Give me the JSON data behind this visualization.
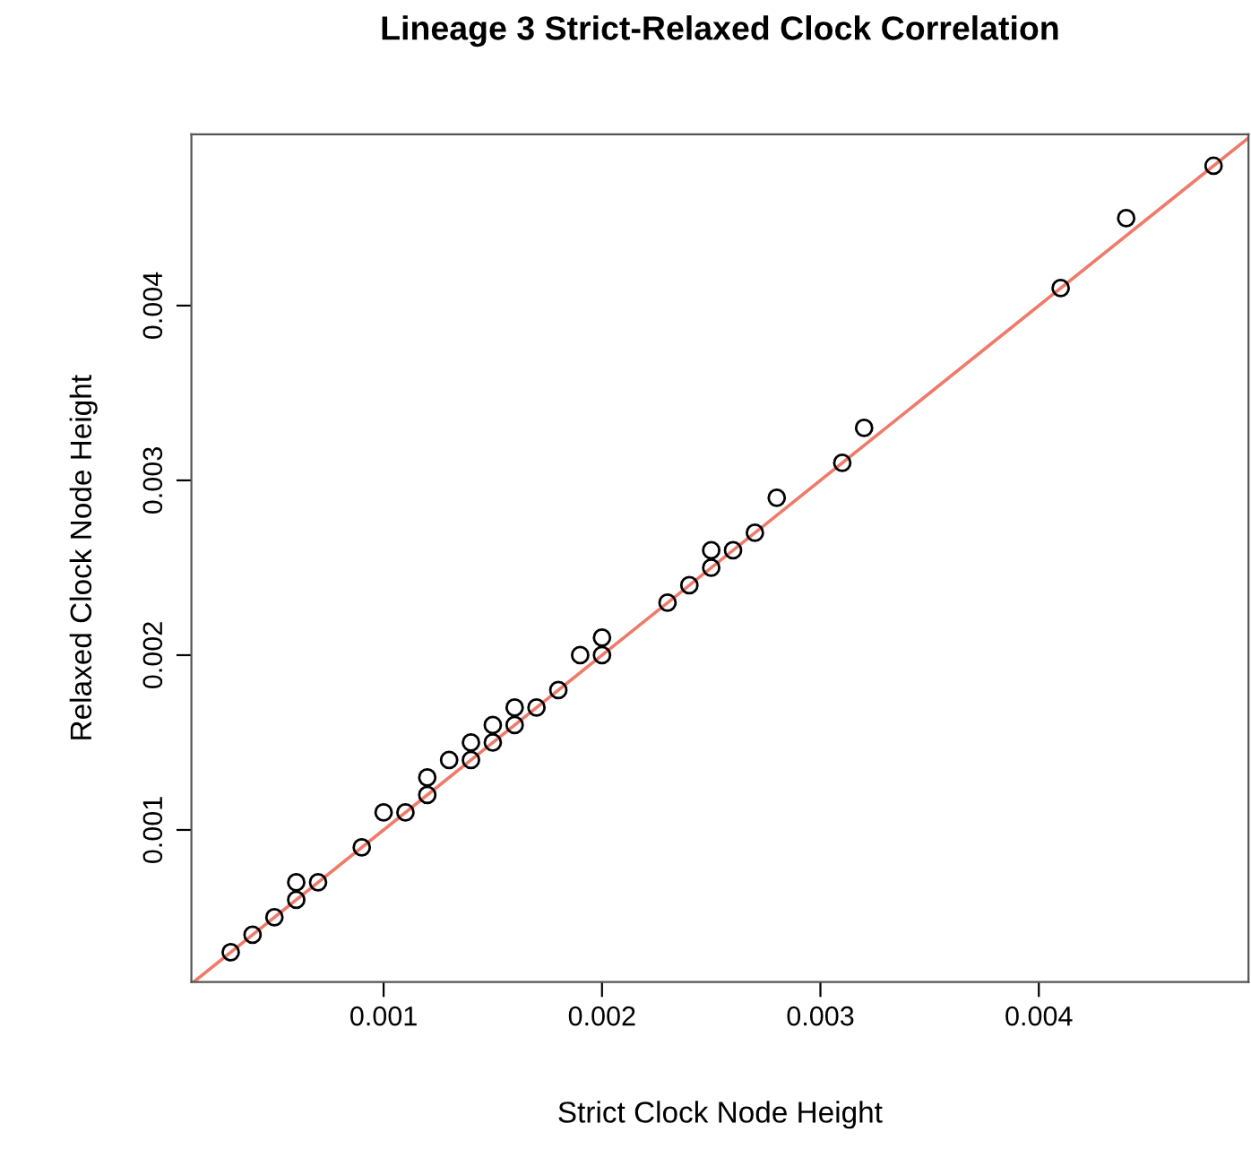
{
  "chart_data": {
    "type": "scatter",
    "title": "Lineage 3 Strict-Relaxed Clock Correlation",
    "xlabel": "Strict Clock Node Height",
    "ylabel": "Relaxed Clock Node Height",
    "xlim": [
      0.00012,
      0.00496
    ],
    "ylim": [
      0.00013,
      0.00498
    ],
    "xticks": [
      0.001,
      0.002,
      0.003,
      0.004
    ],
    "yticks": [
      0.001,
      0.002,
      0.003,
      0.004
    ],
    "grid": false,
    "series": [
      {
        "marker": "circle",
        "color": "#000000",
        "x": [
          0.0003,
          0.0004,
          0.0005,
          0.0006,
          0.0006,
          0.0007,
          0.0009,
          0.001,
          0.0011,
          0.0012,
          0.0012,
          0.0013,
          0.0014,
          0.0014,
          0.0015,
          0.0015,
          0.0016,
          0.0016,
          0.0017,
          0.0018,
          0.0019,
          0.002,
          0.002,
          0.0023,
          0.0024,
          0.0025,
          0.0025,
          0.0026,
          0.0027,
          0.0028,
          0.0031,
          0.0032,
          0.0041,
          0.0044,
          0.0048
        ],
        "values": [
          0.0003,
          0.0004,
          0.0005,
          0.0006,
          0.0007,
          0.0007,
          0.0009,
          0.0011,
          0.0011,
          0.0012,
          0.0013,
          0.0014,
          0.0014,
          0.0015,
          0.0015,
          0.0016,
          0.0016,
          0.0017,
          0.0017,
          0.0018,
          0.002,
          0.002,
          0.0021,
          0.0023,
          0.0024,
          0.0025,
          0.0026,
          0.0026,
          0.0027,
          0.0029,
          0.0031,
          0.0033,
          0.0041,
          0.0045,
          0.0048
        ]
      },
      {
        "type": "line",
        "marker": "none",
        "color": "#f07a6a",
        "x": [
          0.00013,
          0.00496
        ],
        "values": [
          0.00013,
          0.00496
        ]
      }
    ]
  }
}
